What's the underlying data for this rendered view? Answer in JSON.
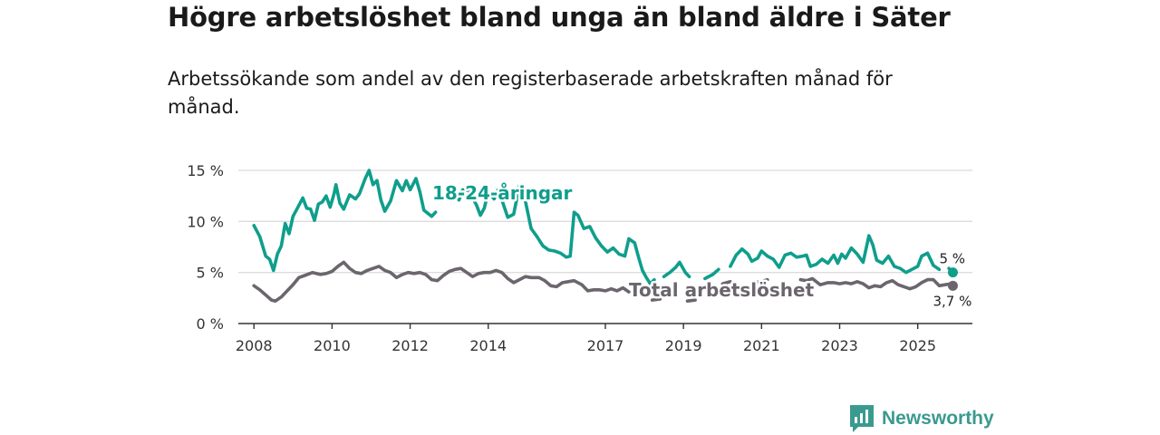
{
  "title": "Högre arbetslöshet bland unga än bland äldre i Säter",
  "subtitle": "Arbetssökande som andel av den registerbaserade arbetskraften månad för månad.",
  "brand": {
    "name": "Newsworthy",
    "logo_icon": "newsworthy-logo-icon"
  },
  "colors": {
    "youth": "#0f9e8c",
    "total": "#6b666d",
    "grid": "#dcdcdc",
    "axis": "#333333",
    "brand": "#3a9a8f"
  },
  "chart_data": {
    "type": "line",
    "title": "Högre arbetslöshet bland unga än bland äldre i Säter",
    "xlabel": "",
    "ylabel": "",
    "xlim": [
      2007.6,
      2026.4
    ],
    "ylim": [
      0,
      15
    ],
    "grid": true,
    "y_ticks": [
      0,
      5,
      10,
      15
    ],
    "y_tick_labels": [
      "0 %",
      "5 %",
      "10 %",
      "15 %"
    ],
    "x_ticks": [
      2008,
      2010,
      2012,
      2014,
      2017,
      2019,
      2021,
      2023,
      2025
    ],
    "x_tick_labels": [
      "2008",
      "2010",
      "2012",
      "2014",
      "2017",
      "2019",
      "2021",
      "2023",
      "2025"
    ],
    "series": [
      {
        "name": "18-24-åringar",
        "label": "18-24-åringar",
        "end_label": "5 %",
        "x": [
          2008.0,
          2008.15,
          2008.3,
          2008.4,
          2008.5,
          2008.6,
          2008.7,
          2008.8,
          2008.9,
          2009.0,
          2009.1,
          2009.25,
          2009.35,
          2009.45,
          2009.55,
          2009.65,
          2009.75,
          2009.85,
          2009.95,
          2010.05,
          2010.1,
          2010.2,
          2010.3,
          2010.45,
          2010.6,
          2010.7,
          2010.85,
          2010.95,
          2011.05,
          2011.15,
          2011.25,
          2011.35,
          2011.5,
          2011.65,
          2011.8,
          2011.9,
          2012.0,
          2012.15,
          2012.25,
          2012.35,
          2012.45,
          2012.55,
          2012.65,
          null,
          2013.15,
          2013.25,
          2013.35,
          2013.5,
          2013.6,
          2013.7,
          2013.8,
          2013.9,
          2014.0,
          2014.15,
          2014.25,
          2014.35,
          2014.5,
          2014.65,
          2014.8,
          2014.95,
          2015.1,
          2015.25,
          2015.4,
          2015.55,
          2015.7,
          2015.85,
          2016.0,
          2016.1,
          2016.2,
          2016.3,
          2016.45,
          2016.6,
          2016.75,
          2016.9,
          2017.05,
          2017.2,
          2017.35,
          2017.5,
          2017.6,
          2017.75,
          2017.85,
          2017.95,
          2018.05,
          2018.15,
          2018.25,
          null,
          2018.5,
          2018.65,
          2018.8,
          2018.9,
          2019.05,
          2019.15,
          null,
          2019.55,
          2019.75,
          2019.9,
          null,
          2020.2,
          2020.35,
          2020.5,
          2020.65,
          2020.75,
          2020.9,
          2021.0,
          2021.15,
          2021.3,
          2021.45,
          2021.6,
          2021.75,
          2021.9,
          2022.05,
          2022.15,
          2022.25,
          2022.4,
          2022.55,
          2022.7,
          2022.85,
          2022.95,
          2023.05,
          2023.15,
          2023.3,
          2023.45,
          2023.6,
          2023.75,
          2023.85,
          2023.95,
          2024.1,
          2024.25,
          2024.4,
          2024.55,
          2024.7,
          2024.85,
          2025.0,
          2025.1,
          2025.25,
          2025.4,
          2025.55,
          null,
          2025.8,
          2025.9
        ],
        "values": [
          9.6,
          8.5,
          6.6,
          6.3,
          5.2,
          6.8,
          7.6,
          9.8,
          8.8,
          10.5,
          11.2,
          12.3,
          11.3,
          11.2,
          10.1,
          11.7,
          11.9,
          12.5,
          11.4,
          12.7,
          13.6,
          11.8,
          11.2,
          12.6,
          12.2,
          12.7,
          14.2,
          15.0,
          13.6,
          14.0,
          12.1,
          11.0,
          12.0,
          14.0,
          13.0,
          14.0,
          13.1,
          14.2,
          12.9,
          11.1,
          10.8,
          10.5,
          10.9,
          null,
          13.1,
          12.1,
          13.1,
          13.0,
          12.3,
          11.6,
          10.6,
          11.3,
          12.9,
          12.2,
          13.1,
          12.1,
          10.4,
          10.7,
          13.5,
          12.0,
          9.3,
          8.5,
          7.6,
          7.2,
          7.1,
          6.9,
          6.5,
          6.6,
          10.9,
          10.6,
          9.3,
          9.5,
          8.4,
          7.6,
          7.0,
          7.4,
          6.8,
          6.6,
          8.3,
          7.9,
          6.5,
          5.2,
          4.5,
          3.9,
          4.3,
          null,
          4.6,
          5.0,
          5.5,
          6.0,
          5.0,
          4.6,
          null,
          4.4,
          4.8,
          5.3,
          null,
          5.6,
          6.7,
          7.3,
          6.8,
          6.1,
          6.4,
          7.1,
          6.6,
          6.3,
          5.5,
          6.7,
          6.9,
          6.5,
          6.6,
          6.7,
          5.6,
          5.8,
          6.3,
          5.9,
          6.7,
          5.9,
          6.8,
          6.4,
          7.4,
          6.8,
          6.0,
          8.6,
          7.7,
          6.2,
          5.9,
          6.6,
          5.6,
          5.4,
          5.0,
          5.3,
          5.6,
          6.6,
          6.9,
          5.7,
          5.3,
          null,
          5.4,
          5.0
        ]
      },
      {
        "name": "Total arbetslöshet",
        "label": "Total arbetslöshet",
        "end_label": "3,7 %",
        "x": [
          2008.0,
          2008.15,
          2008.3,
          2008.45,
          2008.55,
          2008.7,
          2008.85,
          2009.0,
          2009.15,
          2009.3,
          2009.5,
          2009.7,
          2009.85,
          2010.0,
          2010.15,
          2010.3,
          2010.45,
          2010.6,
          2010.75,
          2010.9,
          2011.05,
          2011.2,
          2011.35,
          2011.5,
          2011.65,
          2011.8,
          2011.95,
          2012.1,
          2012.25,
          2012.4,
          2012.55,
          2012.7,
          2012.85,
          2013.0,
          2013.15,
          2013.3,
          2013.45,
          2013.6,
          2013.75,
          2013.9,
          2014.05,
          2014.2,
          2014.35,
          2014.5,
          2014.65,
          2014.8,
          2014.95,
          2015.1,
          2015.3,
          2015.45,
          2015.6,
          2015.75,
          2015.9,
          2016.05,
          2016.2,
          2016.4,
          2016.55,
          2016.7,
          2016.85,
          2017.0,
          2017.15,
          2017.3,
          2017.45,
          2017.6,
          null,
          2018.2,
          2018.4,
          null,
          2019.1,
          2019.3,
          null,
          2020.0,
          2020.2,
          null,
          2020.8,
          2021.0,
          2021.15,
          null,
          2022.0,
          2022.15,
          2022.3,
          2022.5,
          2022.7,
          2022.85,
          2023.0,
          2023.15,
          2023.3,
          2023.45,
          2023.6,
          2023.75,
          2023.9,
          2024.05,
          2024.2,
          2024.35,
          2024.5,
          2024.65,
          2024.8,
          2024.95,
          2025.1,
          2025.25,
          2025.4,
          2025.55,
          2025.7,
          2025.85,
          2025.9
        ],
        "values": [
          3.7,
          3.3,
          2.8,
          2.3,
          2.2,
          2.6,
          3.2,
          3.8,
          4.5,
          4.7,
          5.0,
          4.8,
          4.9,
          5.1,
          5.6,
          6.0,
          5.4,
          5.0,
          4.9,
          5.2,
          5.4,
          5.6,
          5.2,
          5.0,
          4.5,
          4.8,
          5.0,
          4.9,
          5.0,
          4.8,
          4.3,
          4.2,
          4.7,
          5.1,
          5.3,
          5.4,
          5.0,
          4.6,
          4.9,
          5.0,
          5.0,
          5.2,
          5.0,
          4.4,
          4.0,
          4.3,
          4.6,
          4.5,
          4.5,
          4.2,
          3.7,
          3.6,
          4.0,
          4.1,
          4.2,
          3.8,
          3.2,
          3.3,
          3.3,
          3.2,
          3.4,
          3.2,
          3.5,
          3.1,
          null,
          2.3,
          2.4,
          null,
          2.2,
          2.3,
          null,
          3.9,
          4.1,
          null,
          4.0,
          4.1,
          4.3,
          null,
          4.3,
          4.2,
          4.4,
          3.8,
          4.0,
          4.0,
          3.9,
          4.0,
          3.9,
          4.1,
          3.9,
          3.5,
          3.7,
          3.6,
          4.0,
          4.2,
          3.8,
          3.6,
          3.4,
          3.6,
          4.0,
          4.3,
          4.3,
          3.7,
          3.8,
          3.9,
          3.7
        ]
      }
    ]
  }
}
